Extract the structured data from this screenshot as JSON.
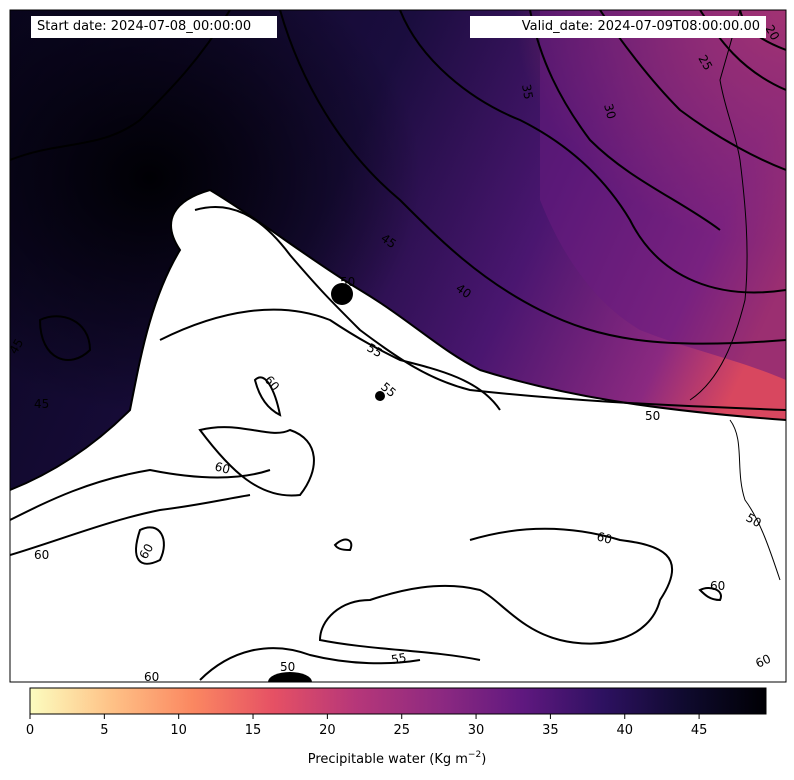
{
  "header": {
    "start_date": "Start date: 2024-07-08_00:00:00",
    "valid_date": "Valid_date: 2024-07-09T08:00:00.00"
  },
  "contour_labels": [
    "20",
    "25",
    "30",
    "35",
    "40",
    "45",
    "45",
    "45",
    "50",
    "50",
    "55",
    "55",
    "60",
    "60",
    "60",
    "60",
    "60",
    "60",
    "60",
    "50",
    "55",
    "60",
    "50"
  ],
  "colorbar": {
    "label": "Precipitable water (Kg m",
    "label_sup": "−2",
    "label_end": ")",
    "ticks": [
      "0",
      "5",
      "10",
      "15",
      "20",
      "25",
      "30",
      "35",
      "40",
      "45"
    ],
    "range": [
      0,
      49.5
    ],
    "colormap": "magma_r",
    "colors": [
      "#fcfdbf",
      "#fec287",
      "#fb8861",
      "#e65164",
      "#b73779",
      "#8c2981",
      "#5f187f",
      "#2d1160",
      "#0f0a2e",
      "#000004"
    ]
  },
  "map": {
    "lowest_colour": "#ffffff",
    "highest_colour": "#000004"
  }
}
